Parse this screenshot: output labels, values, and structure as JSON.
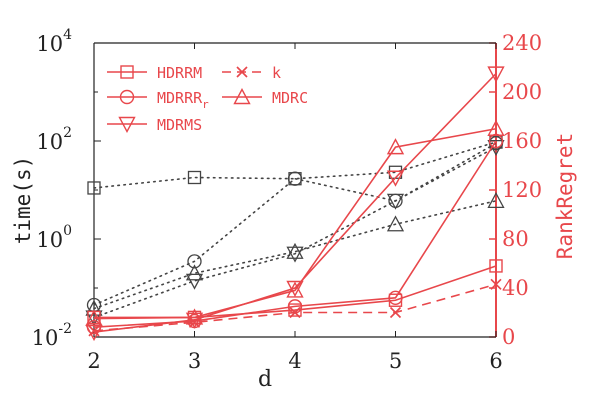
{
  "chart_data": {
    "type": "line",
    "x": [
      2,
      3,
      4,
      5,
      6
    ],
    "xlabel": "d",
    "xticks": [
      "2",
      "3",
      "4",
      "5",
      "6"
    ],
    "y_left": {
      "label": "time(s)",
      "scale": "log",
      "range": [
        0.01,
        10000
      ],
      "ticks": [
        {
          "base": "10",
          "exp": "-2"
        },
        {
          "base": "10",
          "exp": "0"
        },
        {
          "base": "10",
          "exp": "2"
        },
        {
          "base": "10",
          "exp": "4"
        }
      ]
    },
    "y_right": {
      "label": "RankRegret",
      "scale": "linear",
      "range": [
        0,
        240
      ],
      "ticks": [
        "0",
        "40",
        "80",
        "120",
        "160",
        "200",
        "240"
      ]
    },
    "series": [
      {
        "name": "HDRRM",
        "marker": "square",
        "time": [
          11,
          18,
          17,
          23,
          95
        ],
        "rank_regret": [
          16,
          16,
          22,
          30,
          58
        ]
      },
      {
        "name": "MDRRR",
        "name_sub": "r",
        "marker": "circle",
        "time": [
          0.045,
          0.35,
          17,
          6,
          90
        ],
        "rank_regret": [
          8,
          13,
          25,
          32,
          160
        ]
      },
      {
        "name": "MDRC",
        "marker": "triangle",
        "time": [
          0.038,
          0.2,
          0.55,
          2.0,
          6
        ],
        "rank_regret": [
          15,
          16,
          38,
          155,
          170
        ]
      },
      {
        "name": "MDRMS",
        "marker": "triangle-down",
        "time": [
          0.025,
          0.14,
          0.5,
          6,
          75
        ],
        "rank_regret": [
          4,
          14,
          40,
          130,
          215
        ]
      },
      {
        "name": "k",
        "marker": "x",
        "rank_regret": [
          5,
          12,
          20,
          20,
          43
        ]
      }
    ],
    "colors": {
      "red": "#e8474b",
      "gray": "#444444"
    }
  }
}
